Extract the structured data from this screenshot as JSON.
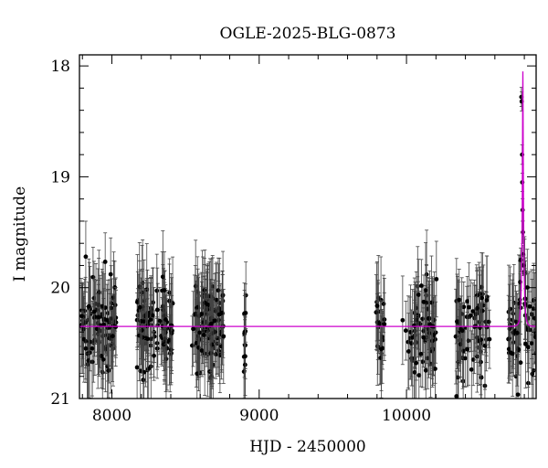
{
  "chart_data": {
    "type": "scatter",
    "title": "OGLE-2025-BLG-0873",
    "xlabel": "HJD - 2450000",
    "ylabel": "I magnitude",
    "xlim": [
      7780,
      10880
    ],
    "ylim": [
      21.0,
      17.9
    ],
    "y_inverted": true,
    "x_ticks": [
      8000,
      9000,
      10000
    ],
    "y_ticks": [
      18,
      19,
      20,
      21
    ],
    "grid": false,
    "baseline_mag": 20.35,
    "peak": {
      "t0": 10790,
      "peak_mag": 18.05,
      "u0": 0.12,
      "tE": 12
    },
    "seasons": [
      {
        "start": 7790,
        "end": 8030,
        "n": 95
      },
      {
        "start": 8170,
        "end": 8420,
        "n": 100
      },
      {
        "start": 8540,
        "end": 8760,
        "n": 110
      },
      {
        "start": 8890,
        "end": 8930,
        "n": 12
      },
      {
        "start": 9790,
        "end": 9860,
        "n": 22
      },
      {
        "start": 9970,
        "end": 10210,
        "n": 70
      },
      {
        "start": 10330,
        "end": 10580,
        "n": 70
      },
      {
        "start": 10690,
        "end": 10880,
        "n": 60
      }
    ],
    "peak_points": [
      {
        "x": 10780,
        "y": 18.28
      },
      {
        "x": 10782,
        "y": 18.32
      },
      {
        "x": 10785,
        "y": 18.8
      },
      {
        "x": 10786,
        "y": 19.05
      },
      {
        "x": 10788,
        "y": 19.3
      },
      {
        "x": 10790,
        "y": 19.5
      },
      {
        "x": 10792,
        "y": 19.7
      },
      {
        "x": 10795,
        "y": 19.8
      },
      {
        "x": 10775,
        "y": 19.75
      },
      {
        "x": 10772,
        "y": 19.95
      }
    ],
    "colors": {
      "points": "#000000",
      "model": "#cc00cc",
      "errorbar": "#444444"
    }
  }
}
